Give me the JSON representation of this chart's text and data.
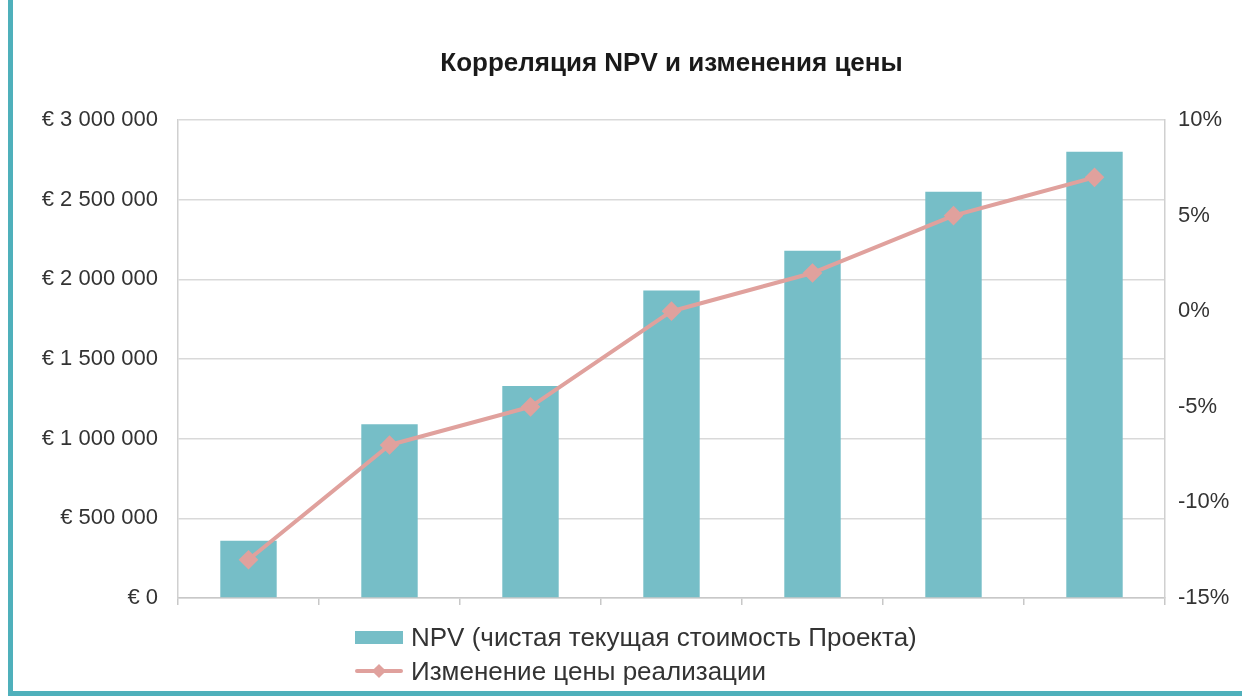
{
  "chart_data": {
    "type": "bar",
    "title": "Корреляция NPV и изменения цены",
    "categories": [
      null,
      null,
      null,
      null,
      null,
      null,
      null
    ],
    "series": [
      {
        "name": "NPV (чистая текущая стоимость Проекта)",
        "color": "#76bec7",
        "values": [
          360000,
          1090000,
          1330000,
          1930000,
          2180000,
          2550000,
          2800000
        ]
      },
      {
        "name": "Изменение цены реализации",
        "type": "line",
        "axis": "y2",
        "color": "#e0a19d",
        "values": [
          -13,
          -7,
          -5,
          0,
          2,
          5,
          7
        ]
      }
    ],
    "ylim": [
      0,
      3000000
    ],
    "yticks": [
      {
        "value": 0,
        "label": "€ 0"
      },
      {
        "value": 500000,
        "label": "€ 500 000"
      },
      {
        "value": 1000000,
        "label": "€ 1 000 000"
      },
      {
        "value": 1500000,
        "label": "€ 1 500 000"
      },
      {
        "value": 2000000,
        "label": "€ 2 000 000"
      },
      {
        "value": 2500000,
        "label": "€ 2 500 000"
      },
      {
        "value": 3000000,
        "label": "€ 3 000 000"
      }
    ],
    "y2lim": [
      -15,
      10
    ],
    "y2ticks": [
      {
        "value": -15,
        "label": "-15%"
      },
      {
        "value": -10,
        "label": "-10%"
      },
      {
        "value": -5,
        "label": "-5%"
      },
      {
        "value": 0,
        "label": "0%"
      },
      {
        "value": 5,
        "label": "5%"
      },
      {
        "value": 10,
        "label": "10%"
      }
    ],
    "grid": "y",
    "legend": "bottom",
    "marker": "diamond"
  }
}
